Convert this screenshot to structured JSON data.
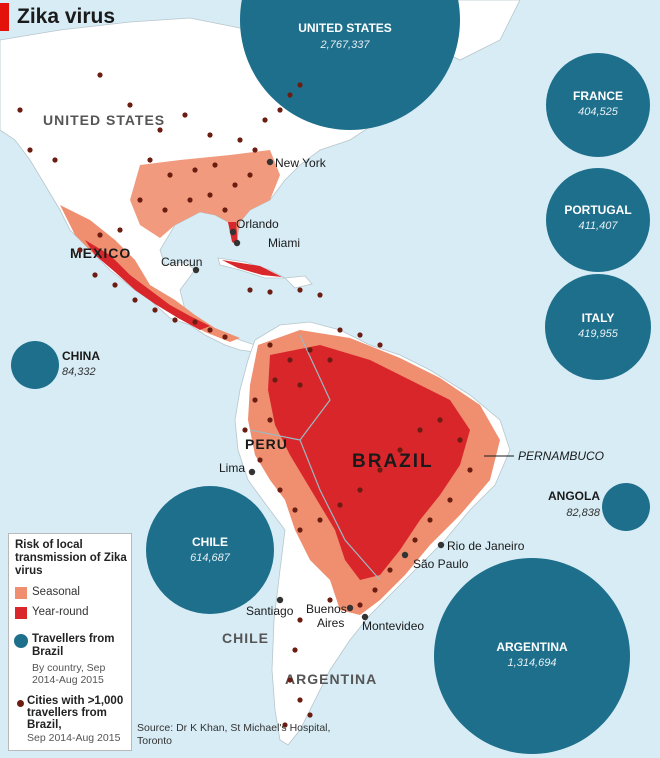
{
  "title": "Zika virus",
  "colors": {
    "ocean": "#d7ecf5",
    "land": "#ffffff",
    "seasonal": "#ef8f6f",
    "year_round": "#d8262b",
    "bubble": "#1e6f8c",
    "city_dot": "#6b1d12",
    "accent": "#e3120b"
  },
  "legend": {
    "title": "Risk of local transmission of Zika virus",
    "seasonal": "Seasonal",
    "year_round": "Year-round",
    "travellers_title": "Travellers from Brazil",
    "travellers_sub": "By country, Sep 2014-Aug 2015",
    "cities_title": ">1,000 travellers from Brazil,",
    "cities_title_prefix": "Cities with",
    "cities_sub": "Sep 2014-Aug 2015"
  },
  "source": "Source: Dr K Khan, St Michael's Hospital, Toronto",
  "bubbles": [
    {
      "country": "UNITED STATES",
      "value": "2,767,337"
    },
    {
      "country": "FRANCE",
      "value": "404,525"
    },
    {
      "country": "PORTUGAL",
      "value": "411,407"
    },
    {
      "country": "ITALY",
      "value": "419,955"
    },
    {
      "country": "CHINA",
      "value": "84,332"
    },
    {
      "country": "ANGOLA",
      "value": "82,838"
    },
    {
      "country": "CHILE",
      "value": "614,687"
    },
    {
      "country": "ARGENTINA",
      "value": "1,314,694"
    }
  ],
  "country_labels": {
    "us": "UNITED STATES",
    "mexico": "MEXICO",
    "brazil": "BRAZIL",
    "peru": "PERU",
    "chile": "CHILE",
    "argentina": "ARGENTINA",
    "pernambuco": "PERNAMBUCO"
  },
  "cities": {
    "new_york": "New York",
    "orlando": "Orlando",
    "miami": "Miami",
    "cancun": "Cancun",
    "lima": "Lima",
    "rio": "Rio de Janeiro",
    "sao_paulo": "São Paulo",
    "santiago": "Santiago",
    "buenos_aires_1": "Buenos",
    "buenos_aires_2": "Aires",
    "montevideo": "Montevideo"
  }
}
